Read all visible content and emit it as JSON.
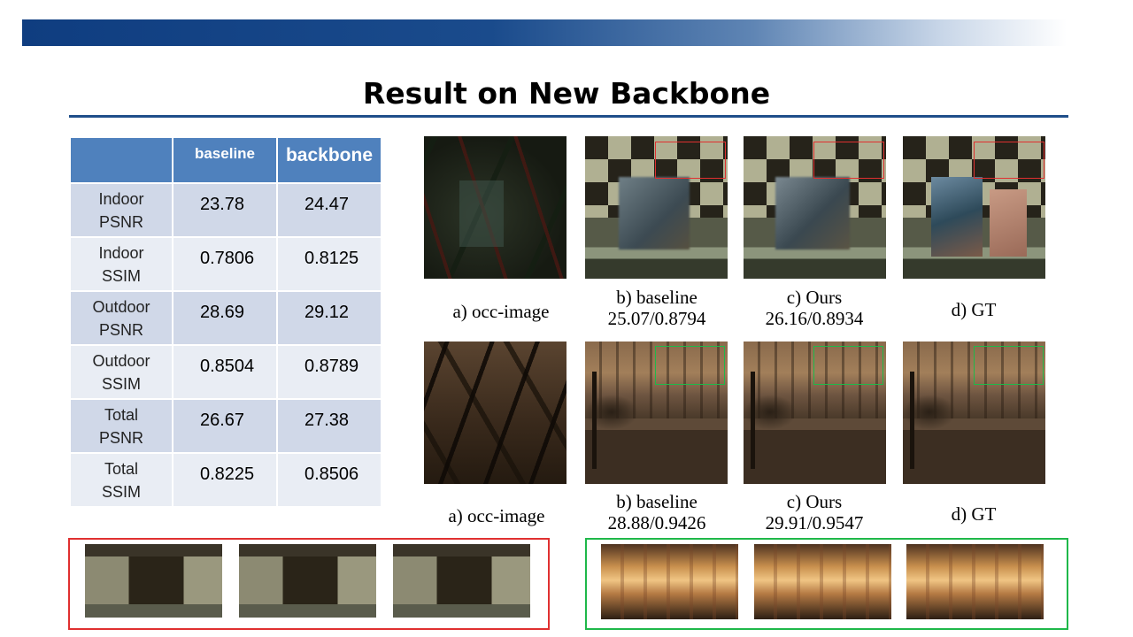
{
  "slide": {
    "title": "Result on New Backbone"
  },
  "table": {
    "headers": [
      "",
      "baseline",
      "backbone"
    ],
    "rows": [
      {
        "label_line1": "Indoor",
        "label_line2": "PSNR",
        "baseline": "23.78",
        "backbone": "24.47"
      },
      {
        "label_line1": "Indoor",
        "label_line2": "SSIM",
        "baseline": "0.7806",
        "backbone": "0.8125"
      },
      {
        "label_line1": "Outdoor",
        "label_line2": "PSNR",
        "baseline": "28.69",
        "backbone": "29.12"
      },
      {
        "label_line1": "Outdoor",
        "label_line2": "SSIM",
        "baseline": "0.8504",
        "backbone": "0.8789"
      },
      {
        "label_line1": "Total",
        "label_line2": "PSNR",
        "baseline": "26.67",
        "backbone": "27.38"
      },
      {
        "label_line1": "Total",
        "label_line2": "SSIM",
        "baseline": "0.8225",
        "backbone": "0.8506"
      }
    ]
  },
  "figure": {
    "row1": {
      "a": {
        "line1": "a) occ-image"
      },
      "b": {
        "line1": "b) baseline",
        "line2": "25.07/0.8794"
      },
      "c": {
        "line1": "c) Ours",
        "line2": "26.16/0.8934"
      },
      "d": {
        "line1": "d) GT"
      }
    },
    "row2": {
      "a": {
        "line1": "a) occ-image"
      },
      "b": {
        "line1": "b) baseline",
        "line2": "28.88/0.9426"
      },
      "c": {
        "line1": "c) Ours",
        "line2": "29.91/0.9547"
      },
      "d": {
        "line1": "d) GT"
      }
    },
    "highlight_colors": {
      "indoor": "#e03030",
      "outdoor": "#1fb84a"
    }
  }
}
